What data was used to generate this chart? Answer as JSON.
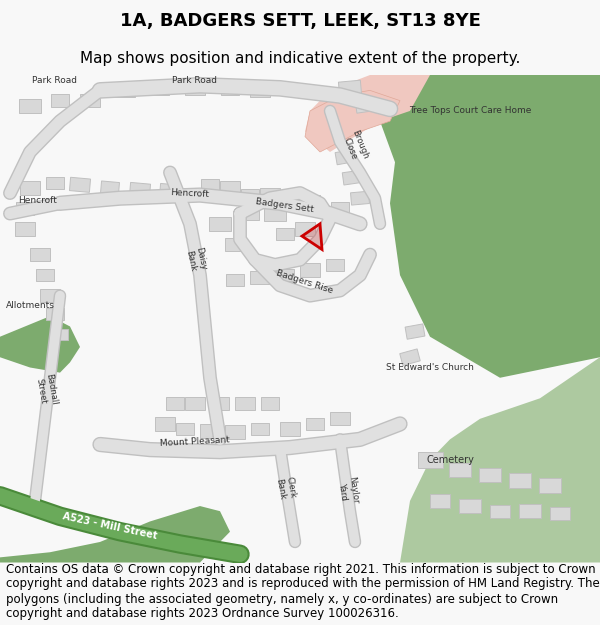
{
  "title": "1A, BADGERS SETT, LEEK, ST13 8YE",
  "subtitle": "Map shows position and indicative extent of the property.",
  "footer": "Contains OS data © Crown copyright and database right 2021. This information is subject to Crown copyright and database rights 2023 and is reproduced with the permission of HM Land Registry. The polygons (including the associated geometry, namely x, y co-ordinates) are subject to Crown copyright and database rights 2023 Ordnance Survey 100026316.",
  "background_color": "#f8f8f8",
  "map_bg": "#ffffff",
  "green_color": "#7dab6e",
  "green_light": "#adc9a0",
  "building_color": "#d8d8d8",
  "building_stroke": "#c0c0c0",
  "red_polygon_color": "#cc0000",
  "pink_area": "#f0c8c0",
  "title_fontsize": 13,
  "subtitle_fontsize": 11,
  "footer_fontsize": 8.5
}
